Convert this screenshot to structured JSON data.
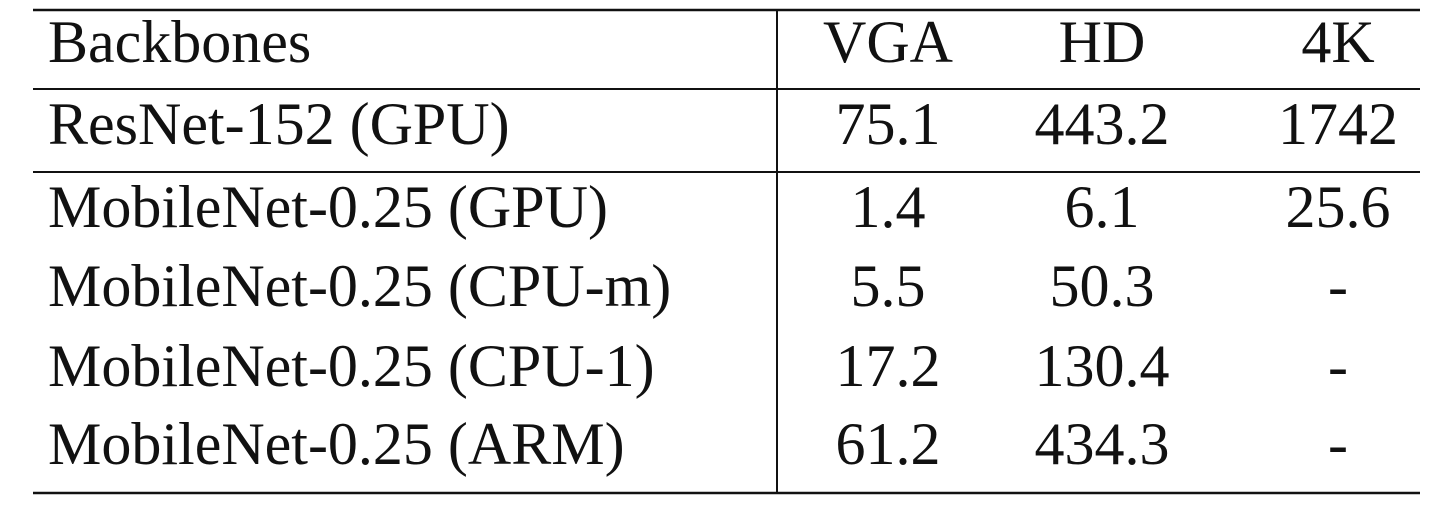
{
  "table": {
    "header": [
      "Backbones",
      "VGA",
      "HD",
      "4K"
    ],
    "rows": [
      [
        "ResNet-152 (GPU)",
        75.1,
        443.2,
        1742
      ],
      [
        "MobileNet-0.25 (GPU)",
        1.4,
        6.1,
        25.6
      ],
      [
        "MobileNet-0.25 (CPU-m)",
        5.5,
        50.3,
        "-"
      ],
      [
        "MobileNet-0.25 (CPU-1)",
        17.2,
        130.4,
        "-"
      ],
      [
        "MobileNet-0.25 (ARM)",
        61.2,
        434.3,
        "-"
      ]
    ]
  }
}
